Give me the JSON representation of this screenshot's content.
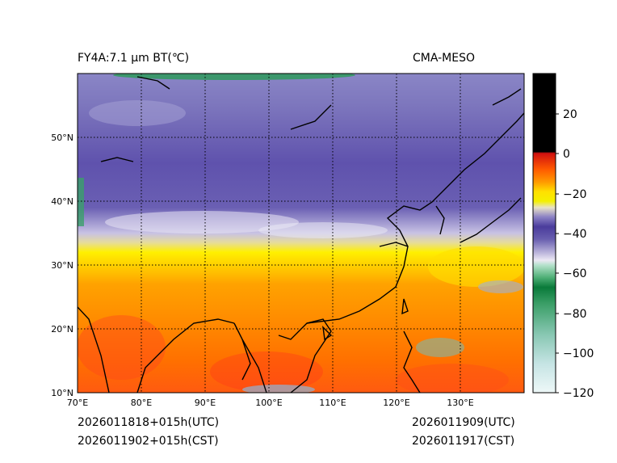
{
  "header": {
    "title_left": "FY4A:7.1 µm BT(℃)",
    "title_right": "CMA-MESO"
  },
  "map": {
    "lat_labels": [
      "10°N",
      "20°N",
      "30°N",
      "40°N",
      "50°N"
    ],
    "lon_labels": [
      "70°E",
      "80°E",
      "90°E",
      "100°E",
      "110°E",
      "120°E",
      "130°E"
    ]
  },
  "colorbar": {
    "ticks": [
      "20",
      "0",
      "−20",
      "−40",
      "−60",
      "−80",
      "−100",
      "−120"
    ]
  },
  "footer": {
    "init_utc": "2026011818+015h(UTC)",
    "init_cst": "2026011902+015h(CST)",
    "valid_utc": "2026011909(UTC)",
    "valid_cst": "2026011917(CST)"
  },
  "colors": {
    "cold_purple": "#5a4aa8",
    "warm_orange": "#ff6a00",
    "yellow": "#ffe800",
    "grid": "#000000"
  }
}
